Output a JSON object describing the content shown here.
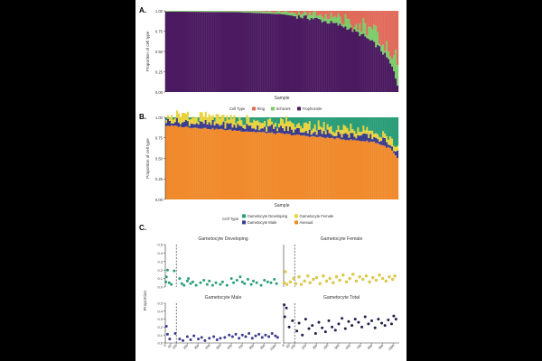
{
  "figure": {
    "background": "#000000",
    "panel_background": "#ffffff"
  },
  "chart_data": [
    {
      "panel_label": "A.",
      "type": "bar",
      "stacked": true,
      "xlabel": "Sample",
      "ylabel": "Proportion of cell type",
      "ylim": [
        0,
        1
      ],
      "yticks": [
        "0.00",
        "0.25",
        "0.50",
        "0.75",
        "1.00"
      ],
      "n_samples": 130,
      "series_order_bottom_to_top": [
        "Trophozoite",
        "Schizont",
        "Ring"
      ],
      "series_colors": {
        "Ring": "#e06b5b",
        "Schizont": "#7dcc6a",
        "Trophozoite": "#4b1a60"
      },
      "trophozoite_profile_by_rank": [
        [
          0,
          0.99
        ],
        [
          0.3,
          0.985
        ],
        [
          0.5,
          0.96
        ],
        [
          0.65,
          0.9
        ],
        [
          0.78,
          0.8
        ],
        [
          0.86,
          0.68
        ],
        [
          0.92,
          0.55
        ],
        [
          0.96,
          0.4
        ],
        [
          0.985,
          0.25
        ],
        [
          1.0,
          0.1
        ]
      ],
      "ring_fraction_profile_by_rank": [
        [
          0,
          0.0
        ],
        [
          0.5,
          0.2
        ],
        [
          0.75,
          0.5
        ],
        [
          0.9,
          0.7
        ],
        [
          1.0,
          0.85
        ]
      ],
      "legend": {
        "title": "Cell Type",
        "entries": [
          "Ring",
          "Schizont",
          "Trophozoite"
        ],
        "placement": "bottom"
      }
    },
    {
      "panel_label": "B.",
      "type": "bar",
      "stacked": true,
      "xlabel": "Sample",
      "ylabel": "Proportion of cell type",
      "ylim": [
        0,
        1
      ],
      "yticks": [
        "0.00",
        "0.25",
        "0.50",
        "0.75",
        "1.00"
      ],
      "n_samples": 130,
      "series_order_bottom_to_top": [
        "Asexual",
        "Gametocyte Male",
        "Gametocyte Female",
        "Gametocyte Developing"
      ],
      "series_colors": {
        "Gametocyte Developing": "#2a9d78",
        "Gametocyte Female": "#e8d33f",
        "Gametocyte Male": "#3b3b8f",
        "Asexual": "#f08a2c"
      },
      "asexual_profile_by_rank": [
        [
          0,
          0.9
        ],
        [
          0.5,
          0.8
        ],
        [
          0.9,
          0.7
        ],
        [
          0.97,
          0.62
        ],
        [
          1.0,
          0.5
        ]
      ],
      "male_band": [
        0.02,
        0.1
      ],
      "female_band": [
        0.03,
        0.12
      ],
      "legend": {
        "title": "Cell Type",
        "entries": [
          "Gametocyte Developing",
          "Gametocyte Female",
          "Gametocyte Male",
          "Asexual"
        ],
        "placement": "bottom"
      }
    },
    {
      "panel_label": "C.",
      "type": "scatter",
      "ylabel": "Proportion",
      "ylim": [
        0,
        0.5
      ],
      "yticks": [
        "0.0",
        "0.1",
        "0.2",
        "0.3",
        "0.4",
        "0.5"
      ],
      "xlim": [
        0,
        1050
      ],
      "xticks": [
        "0",
        "50",
        "100",
        "200",
        "300",
        "400",
        "500",
        "600",
        "700",
        "800",
        "900",
        "1000"
      ],
      "xtick_values": [
        0,
        50,
        100,
        200,
        300,
        400,
        500,
        600,
        700,
        800,
        900,
        1000
      ],
      "reference_line_x": 100,
      "facets": [
        {
          "title": "Gametocyte Developing",
          "color": "#2a9d78",
          "points": [
            [
              5,
              0.06
            ],
            [
              10,
              0.12
            ],
            [
              20,
              0.2
            ],
            [
              35,
              0.05
            ],
            [
              55,
              0.03
            ],
            [
              80,
              0.19
            ],
            [
              130,
              0.1
            ],
            [
              150,
              0.04
            ],
            [
              170,
              0.02
            ],
            [
              200,
              0.07
            ],
            [
              210,
              0.1
            ],
            [
              230,
              0.04
            ],
            [
              250,
              0.06
            ],
            [
              280,
              0.02
            ],
            [
              320,
              0.05
            ],
            [
              350,
              0.08
            ],
            [
              380,
              0.03
            ],
            [
              400,
              0.07
            ],
            [
              430,
              0.02
            ],
            [
              460,
              0.05
            ],
            [
              500,
              0.03
            ],
            [
              520,
              0.06
            ],
            [
              560,
              0.02
            ],
            [
              600,
              0.1
            ],
            [
              620,
              0.05
            ],
            [
              650,
              0.08
            ],
            [
              680,
              0.12
            ],
            [
              700,
              0.06
            ],
            [
              720,
              0.04
            ],
            [
              750,
              0.09
            ],
            [
              780,
              0.03
            ],
            [
              800,
              0.07
            ],
            [
              830,
              0.05
            ],
            [
              870,
              0.02
            ],
            [
              900,
              0.08
            ],
            [
              930,
              0.06
            ],
            [
              960,
              0.05
            ],
            [
              990,
              0.09
            ],
            [
              1010,
              0.04
            ]
          ]
        },
        {
          "title": "Gametocyte Female",
          "color": "#e8d33f",
          "points": [
            [
              5,
              0.05
            ],
            [
              15,
              0.18
            ],
            [
              30,
              0.03
            ],
            [
              60,
              0.06
            ],
            [
              90,
              0.1
            ],
            [
              110,
              0.04
            ],
            [
              140,
              0.12
            ],
            [
              160,
              0.03
            ],
            [
              190,
              0.07
            ],
            [
              220,
              0.13
            ],
            [
              240,
              0.05
            ],
            [
              270,
              0.09
            ],
            [
              300,
              0.11
            ],
            [
              330,
              0.04
            ],
            [
              360,
              0.13
            ],
            [
              390,
              0.07
            ],
            [
              420,
              0.1
            ],
            [
              450,
              0.05
            ],
            [
              480,
              0.12
            ],
            [
              510,
              0.08
            ],
            [
              540,
              0.14
            ],
            [
              570,
              0.06
            ],
            [
              600,
              0.1
            ],
            [
              630,
              0.15
            ],
            [
              660,
              0.07
            ],
            [
              690,
              0.12
            ],
            [
              720,
              0.09
            ],
            [
              750,
              0.13
            ],
            [
              780,
              0.06
            ],
            [
              810,
              0.11
            ],
            [
              840,
              0.08
            ],
            [
              870,
              0.14
            ],
            [
              900,
              0.1
            ],
            [
              930,
              0.07
            ],
            [
              960,
              0.12
            ],
            [
              990,
              0.09
            ],
            [
              1010,
              0.13
            ]
          ]
        },
        {
          "title": "Gametocyte Male",
          "color": "#3b3b8f",
          "points": [
            [
              10,
              0.21
            ],
            [
              20,
              0.11
            ],
            [
              40,
              0.05
            ],
            [
              90,
              0.12
            ],
            [
              130,
              0.05
            ],
            [
              160,
              0.03
            ],
            [
              200,
              0.08
            ],
            [
              230,
              0.04
            ],
            [
              260,
              0.09
            ],
            [
              300,
              0.05
            ],
            [
              330,
              0.07
            ],
            [
              360,
              0.03
            ],
            [
              400,
              0.06
            ],
            [
              440,
              0.08
            ],
            [
              470,
              0.04
            ],
            [
              500,
              0.06
            ],
            [
              540,
              0.07
            ],
            [
              580,
              0.1
            ],
            [
              610,
              0.08
            ],
            [
              640,
              0.11
            ],
            [
              670,
              0.06
            ],
            [
              700,
              0.1
            ],
            [
              730,
              0.08
            ],
            [
              760,
              0.12
            ],
            [
              790,
              0.06
            ],
            [
              820,
              0.09
            ],
            [
              850,
              0.11
            ],
            [
              880,
              0.07
            ],
            [
              910,
              0.1
            ],
            [
              940,
              0.08
            ],
            [
              970,
              0.12
            ],
            [
              1000,
              0.09
            ],
            [
              1020,
              0.07
            ]
          ]
        },
        {
          "title": "Gametocyte Total",
          "color": "#1f1f4a",
          "points": [
            [
              5,
              0.48
            ],
            [
              10,
              0.33
            ],
            [
              25,
              0.44
            ],
            [
              50,
              0.2
            ],
            [
              80,
              0.28
            ],
            [
              120,
              0.15
            ],
            [
              140,
              0.25
            ],
            [
              170,
              0.1
            ],
            [
              200,
              0.3
            ],
            [
              230,
              0.18
            ],
            [
              260,
              0.22
            ],
            [
              290,
              0.12
            ],
            [
              320,
              0.26
            ],
            [
              350,
              0.19
            ],
            [
              380,
              0.14
            ],
            [
              410,
              0.28
            ],
            [
              440,
              0.2
            ],
            [
              470,
              0.16
            ],
            [
              500,
              0.24
            ],
            [
              530,
              0.31
            ],
            [
              560,
              0.18
            ],
            [
              590,
              0.27
            ],
            [
              620,
              0.22
            ],
            [
              650,
              0.3
            ],
            [
              680,
              0.26
            ],
            [
              710,
              0.2
            ],
            [
              740,
              0.33
            ],
            [
              770,
              0.24
            ],
            [
              800,
              0.28
            ],
            [
              830,
              0.19
            ],
            [
              860,
              0.3
            ],
            [
              890,
              0.25
            ],
            [
              920,
              0.22
            ],
            [
              950,
              0.29
            ],
            [
              980,
              0.24
            ],
            [
              1000,
              0.34
            ],
            [
              1020,
              0.3
            ]
          ]
        }
      ]
    }
  ]
}
